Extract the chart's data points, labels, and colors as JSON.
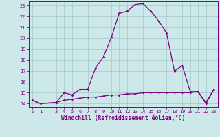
{
  "x": [
    0,
    1,
    3,
    4,
    5,
    6,
    7,
    8,
    9,
    10,
    11,
    12,
    13,
    14,
    15,
    16,
    17,
    18,
    19,
    20,
    21,
    22,
    23
  ],
  "y_temperature": [
    14.3,
    14.0,
    14.1,
    15.0,
    14.8,
    15.3,
    15.3,
    17.3,
    18.3,
    20.1,
    22.3,
    22.5,
    23.1,
    23.2,
    22.5,
    21.6,
    20.5,
    17.0,
    17.5,
    15.1,
    15.1,
    14.0,
    15.3
  ],
  "y_windchill": [
    14.3,
    14.0,
    14.1,
    14.3,
    14.4,
    14.5,
    14.6,
    14.6,
    14.7,
    14.8,
    14.8,
    14.9,
    14.9,
    15.0,
    15.0,
    15.0,
    15.0,
    15.0,
    15.0,
    15.0,
    15.1,
    14.1,
    15.3
  ],
  "line_color": "#800080",
  "bg_color": "#cce8e8",
  "grid_color": "#aacccc",
  "xlabel": "Windchill (Refroidissement éolien,°C)",
  "ylim": [
    13.7,
    23.4
  ],
  "xlim": [
    -0.5,
    23.5
  ],
  "yticks": [
    14,
    15,
    16,
    17,
    18,
    19,
    20,
    21,
    22,
    23
  ],
  "xticks": [
    0,
    1,
    3,
    4,
    5,
    6,
    7,
    8,
    9,
    10,
    11,
    12,
    13,
    14,
    15,
    16,
    17,
    18,
    19,
    20,
    21,
    22,
    23
  ],
  "xlabel_fontsize": 5.8,
  "tick_fontsize": 5.0
}
